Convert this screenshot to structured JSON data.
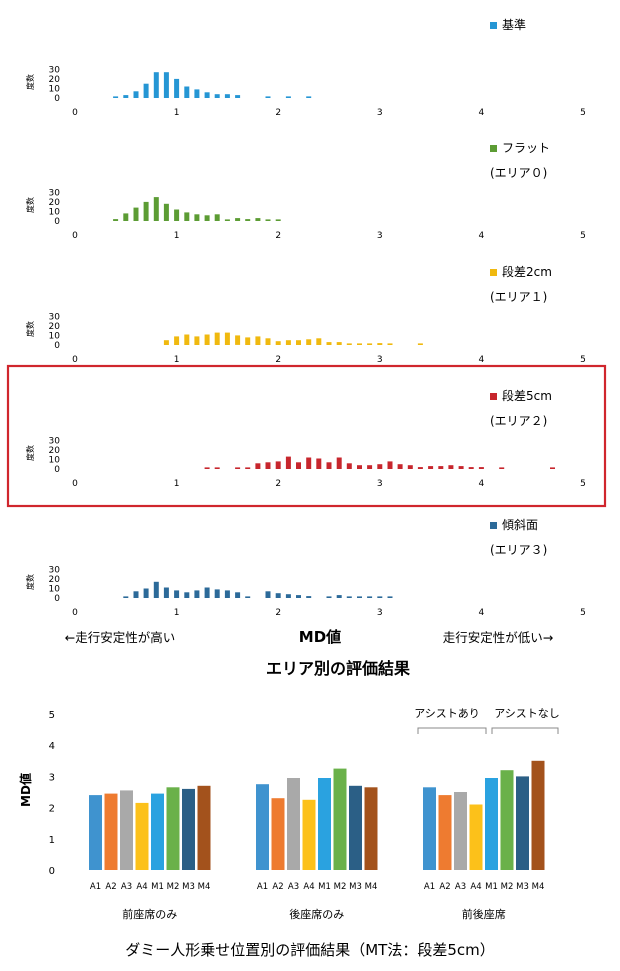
{
  "histograms": {
    "ylabel": "度数",
    "xlabel": "MD値",
    "left_note": "←走行安定性が高い",
    "right_note": "走行安定性が低い→",
    "caption": "エリア別の評価結果",
    "xlim": [
      0,
      5
    ],
    "ylim": [
      0,
      30
    ],
    "x_ticks": [
      "0",
      "1",
      "2",
      "3",
      "4",
      "5"
    ],
    "y_ticks": [
      "0",
      "10",
      "20",
      "30"
    ]
  },
  "bar_chart": {
    "ylabel": "MD値",
    "ylim": [
      0,
      5
    ],
    "y_ticks": [
      "0",
      "1",
      "2",
      "3",
      "4",
      "5"
    ],
    "caption": "ダミー人形乗せ位置別の評価結果（MT法：段差5cm）",
    "bracket_left": "アシストあり",
    "bracket_right": "アシストなし",
    "colors": [
      "#3f93cf",
      "#ee7b30",
      "#a9a9a9",
      "#fcc11a",
      "#2aa2e0",
      "#6ab14a",
      "#2b5f86",
      "#a3521c"
    ]
  },
  "chart_data": [
    {
      "type": "bar",
      "title": "",
      "legend": [
        "基準"
      ],
      "color": "#2596d4",
      "xlim": [
        0,
        5
      ],
      "ylim": [
        0,
        30
      ],
      "x": [
        0.4,
        0.5,
        0.6,
        0.7,
        0.8,
        0.9,
        1.0,
        1.1,
        1.2,
        1.3,
        1.4,
        1.5,
        1.6,
        1.9,
        2.1,
        2.3
      ],
      "values": [
        1,
        3,
        7,
        15,
        27,
        27,
        20,
        12,
        9,
        6,
        4,
        4,
        3,
        1,
        1,
        1
      ]
    },
    {
      "type": "bar",
      "title": "",
      "legend": [
        "フラット",
        "(エリア０)"
      ],
      "color": "#5c9c34",
      "xlim": [
        0,
        5
      ],
      "ylim": [
        0,
        30
      ],
      "x": [
        0.4,
        0.5,
        0.6,
        0.7,
        0.8,
        0.9,
        1.0,
        1.1,
        1.2,
        1.3,
        1.4,
        1.5,
        1.6,
        1.7,
        1.8,
        1.9,
        2.0
      ],
      "values": [
        2,
        8,
        14,
        20,
        25,
        18,
        12,
        9,
        7,
        6,
        7,
        1,
        3,
        2,
        3,
        1,
        1
      ]
    },
    {
      "type": "bar",
      "title": "",
      "legend": [
        "段差2cm",
        "(エリア１)"
      ],
      "color": "#f0b90f",
      "xlim": [
        0,
        5
      ],
      "ylim": [
        0,
        30
      ],
      "x": [
        0.9,
        1.0,
        1.1,
        1.2,
        1.3,
        1.4,
        1.5,
        1.6,
        1.7,
        1.8,
        1.9,
        2.0,
        2.1,
        2.2,
        2.3,
        2.4,
        2.5,
        2.6,
        2.7,
        2.8,
        2.9,
        3.0,
        3.1,
        3.4
      ],
      "values": [
        5,
        9,
        11,
        9,
        11,
        13,
        13,
        10,
        8,
        9,
        7,
        4,
        5,
        5,
        6,
        7,
        3,
        3,
        1,
        1,
        1,
        2,
        1,
        1
      ]
    },
    {
      "type": "bar",
      "title": "",
      "legend": [
        "段差5cm",
        "(エリア２)"
      ],
      "color": "#c7262d",
      "xlim": [
        0,
        5
      ],
      "ylim": [
        0,
        30
      ],
      "x": [
        1.3,
        1.4,
        1.6,
        1.7,
        1.8,
        1.9,
        2.0,
        2.1,
        2.2,
        2.3,
        2.4,
        2.5,
        2.6,
        2.7,
        2.8,
        2.9,
        3.0,
        3.1,
        3.2,
        3.3,
        3.4,
        3.5,
        3.6,
        3.7,
        3.8,
        3.9,
        4.0,
        4.2,
        4.7
      ],
      "values": [
        1,
        1,
        1,
        1,
        6,
        7,
        8,
        13,
        7,
        12,
        11,
        7,
        12,
        6,
        4,
        4,
        5,
        8,
        5,
        4,
        2,
        3,
        3,
        4,
        3,
        2,
        2,
        1,
        1
      ]
    },
    {
      "type": "bar",
      "title": "",
      "legend": [
        "傾斜面",
        "(エリア３)"
      ],
      "color": "#2c6a99",
      "xlim": [
        0,
        5
      ],
      "ylim": [
        0,
        30
      ],
      "x": [
        0.5,
        0.6,
        0.7,
        0.8,
        0.9,
        1.0,
        1.1,
        1.2,
        1.3,
        1.4,
        1.5,
        1.6,
        1.7,
        1.9,
        2.0,
        2.1,
        2.2,
        2.3,
        2.5,
        2.6,
        2.7,
        2.8,
        2.9,
        3.0,
        3.1
      ],
      "values": [
        1,
        7,
        10,
        17,
        11,
        8,
        6,
        8,
        11,
        9,
        8,
        6,
        1,
        7,
        5,
        4,
        3,
        2,
        1,
        3,
        1,
        1,
        1,
        1,
        1
      ]
    },
    {
      "type": "bar",
      "title": "",
      "ylabel": "MD値",
      "ylim": [
        0,
        5
      ],
      "categories": [
        "A1",
        "A2",
        "A3",
        "A4",
        "M1",
        "M2",
        "M3",
        "M4"
      ],
      "groups": [
        {
          "name": "前座席のみ",
          "values": [
            2.4,
            2.45,
            2.55,
            2.15,
            2.45,
            2.65,
            2.6,
            2.7
          ]
        },
        {
          "name": "後座席のみ",
          "values": [
            2.75,
            2.3,
            2.95,
            2.25,
            2.95,
            3.25,
            2.7,
            2.65
          ]
        },
        {
          "name": "前後座席",
          "values": [
            2.65,
            2.4,
            2.5,
            2.1,
            2.95,
            3.2,
            3.0,
            3.5
          ]
        }
      ]
    }
  ]
}
